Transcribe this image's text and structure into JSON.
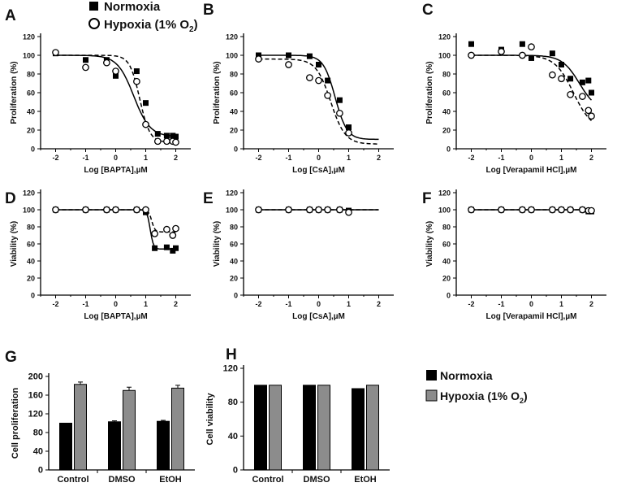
{
  "legend_top": {
    "normoxia": "Normoxia",
    "hypoxia": "Hypoxia (1% O",
    "hypoxia_sub": "2",
    "hypoxia_end": ")"
  },
  "legend_bar": {
    "normoxia": "Normoxia",
    "hypoxia": "Hypoxia (1% O",
    "hypoxia_sub": "2",
    "hypoxia_end": ")"
  },
  "colors": {
    "normoxia": "#000000",
    "hypoxia_bar": "#8c8c8c",
    "hypoxia_marker": "#ffffff"
  },
  "chart_data": [
    {
      "panel": "A",
      "type": "line",
      "xlabel": "Log [BAPTA],µM",
      "ylabel": "Proliferation (%)",
      "xlim": [
        -2.5,
        2.5
      ],
      "ylim": [
        0,
        120
      ],
      "xticks": [
        -2,
        -1,
        0,
        1,
        2
      ],
      "yticks": [
        0,
        20,
        40,
        60,
        80,
        100,
        120
      ],
      "series": [
        {
          "name": "Normoxia",
          "marker": "filled-square",
          "line": "solid",
          "x": [
            -2,
            -1,
            -0.3,
            0,
            0.7,
            1,
            1.4,
            1.7,
            1.9,
            2
          ],
          "y": [
            102,
            95,
            95,
            78,
            83,
            49,
            16,
            14,
            14,
            13
          ],
          "fit": {
            "top": 100,
            "bottom": 13,
            "log_ic50": 0.6,
            "hill": 1.6
          }
        },
        {
          "name": "Hypoxia (1% O2)",
          "marker": "open-circle",
          "line": "dashed",
          "x": [
            -2,
            -1,
            -0.3,
            0,
            0.7,
            1,
            1.4,
            1.7,
            1.9,
            2
          ],
          "y": [
            103,
            87,
            92,
            83,
            72,
            26,
            8,
            8,
            8,
            7
          ],
          "fit": {
            "top": 100,
            "bottom": 7,
            "log_ic50": 0.8,
            "hill": 2.6
          }
        }
      ]
    },
    {
      "panel": "B",
      "type": "line",
      "xlabel": "Log [CsA],µM",
      "ylabel": "Proliferation (%)",
      "xlim": [
        -2.5,
        2.5
      ],
      "ylim": [
        0,
        120
      ],
      "xticks": [
        -2,
        -1,
        0,
        1,
        2
      ],
      "yticks": [
        0,
        20,
        40,
        60,
        80,
        100,
        120
      ],
      "series": [
        {
          "name": "Normoxia",
          "marker": "filled-square",
          "line": "solid",
          "x": [
            -2,
            -1,
            -0.3,
            0,
            0.3,
            0.7,
            1
          ],
          "y": [
            100,
            100,
            99,
            90,
            73,
            52,
            23
          ],
          "fit": {
            "top": 100,
            "bottom": 10,
            "log_ic50": 0.55,
            "hill": 2.2
          }
        },
        {
          "name": "Hypoxia (1% O2)",
          "marker": "open-circle",
          "line": "dashed",
          "x": [
            -2,
            -1,
            -0.3,
            0,
            0.3,
            0.7,
            1
          ],
          "y": [
            96,
            90,
            76,
            73,
            57,
            38,
            17
          ],
          "fit": {
            "top": 96,
            "bottom": 5,
            "log_ic50": 0.4,
            "hill": 1.8
          }
        }
      ]
    },
    {
      "panel": "C",
      "type": "line",
      "xlabel": "Log [Verapamil HCl],µM",
      "ylabel": "Proliferation (%)",
      "xlim": [
        -2.5,
        2.5
      ],
      "ylim": [
        0,
        120
      ],
      "xticks": [
        -2,
        -1,
        0,
        1,
        2
      ],
      "yticks": [
        0,
        20,
        40,
        60,
        80,
        100,
        120
      ],
      "series": [
        {
          "name": "Normoxia",
          "marker": "filled-square",
          "line": "solid",
          "x": [
            -2,
            -1,
            -0.3,
            0,
            0.7,
            1,
            1.3,
            1.7,
            1.9,
            2
          ],
          "y": [
            112,
            106,
            112,
            97,
            102,
            90,
            75,
            71,
            73,
            60
          ],
          "fit": {
            "top": 100,
            "bottom": 40,
            "log_ic50": 1.6,
            "hill": 1.5
          }
        },
        {
          "name": "Hypoxia (1% O2)",
          "marker": "open-circle",
          "line": "dashed",
          "x": [
            -2,
            -1,
            -0.3,
            0,
            0.7,
            1,
            1.3,
            1.7,
            1.9,
            2
          ],
          "y": [
            100,
            104,
            100,
            109,
            79,
            75,
            58,
            56,
            41,
            35
          ],
          "fit": {
            "top": 100,
            "bottom": 20,
            "log_ic50": 1.4,
            "hill": 1.4
          }
        }
      ]
    },
    {
      "panel": "D",
      "type": "line",
      "xlabel": "Log [BAPTA],µM",
      "ylabel": "Viability (%)",
      "xlim": [
        -2.5,
        2.5
      ],
      "ylim": [
        0,
        120
      ],
      "xticks": [
        -2,
        -1,
        0,
        1,
        2
      ],
      "yticks": [
        0,
        20,
        40,
        60,
        80,
        100,
        120
      ],
      "series": [
        {
          "name": "Normoxia",
          "marker": "filled-square",
          "line": "solid",
          "x": [
            -2,
            -1,
            -0.3,
            0,
            0.7,
            1,
            1.3,
            1.7,
            1.9,
            2
          ],
          "y": [
            100,
            100,
            100,
            100,
            100,
            97,
            55,
            56,
            52,
            55
          ],
          "fit": {
            "top": 100,
            "bottom": 54,
            "log_ic50": 1.15,
            "hill": 8
          }
        },
        {
          "name": "Hypoxia (1% O2)",
          "marker": "open-circle",
          "line": "dashed",
          "x": [
            -2,
            -1,
            -0.3,
            0,
            0.7,
            1,
            1.3,
            1.7,
            1.9,
            2
          ],
          "y": [
            100,
            100,
            100,
            100,
            100,
            100,
            72,
            77,
            70,
            78
          ],
          "fit": {
            "top": 100,
            "bottom": 74,
            "log_ic50": 1.2,
            "hill": 8
          }
        }
      ]
    },
    {
      "panel": "E",
      "type": "line",
      "xlabel": "Log [CsA],µM",
      "ylabel": "Viability (%)",
      "xlim": [
        -2.5,
        2.5
      ],
      "ylim": [
        0,
        120
      ],
      "xticks": [
        -2,
        -1,
        0,
        1,
        2
      ],
      "yticks": [
        0,
        20,
        40,
        60,
        80,
        100,
        120
      ],
      "series": [
        {
          "name": "Normoxia",
          "marker": "filled-square",
          "line": "solid",
          "x": [
            -2,
            -1,
            -0.3,
            0,
            0.3,
            0.7,
            1
          ],
          "y": [
            100,
            100,
            100,
            100,
            100,
            100,
            99
          ],
          "fit": {
            "top": 100,
            "bottom": 100,
            "log_ic50": 0,
            "hill": 1
          }
        },
        {
          "name": "Hypoxia (1% O2)",
          "marker": "open-circle",
          "line": "dashed",
          "x": [
            -2,
            -1,
            -0.3,
            0,
            0.3,
            0.7,
            1
          ],
          "y": [
            100,
            100,
            100,
            100,
            100,
            100,
            97
          ],
          "fit": {
            "top": 100,
            "bottom": 100,
            "log_ic50": 0,
            "hill": 1
          }
        }
      ]
    },
    {
      "panel": "F",
      "type": "line",
      "xlabel": "Log [Verapamil HCl],µM",
      "ylabel": "Viability (%)",
      "xlim": [
        -2.5,
        2.5
      ],
      "ylim": [
        0,
        120
      ],
      "xticks": [
        -2,
        -1,
        0,
        1,
        2
      ],
      "yticks": [
        0,
        20,
        40,
        60,
        80,
        100,
        120
      ],
      "series": [
        {
          "name": "Normoxia",
          "marker": "filled-square",
          "line": "solid",
          "x": [
            -2,
            -1,
            -0.3,
            0,
            0.7,
            1,
            1.3,
            1.7,
            1.9,
            2
          ],
          "y": [
            100,
            100,
            100,
            100,
            100,
            100,
            100,
            100,
            98,
            98
          ],
          "fit": {
            "top": 100,
            "bottom": 100,
            "log_ic50": 0,
            "hill": 1
          }
        },
        {
          "name": "Hypoxia (1% O2)",
          "marker": "open-circle",
          "line": "dashed",
          "x": [
            -2,
            -1,
            -0.3,
            0,
            0.7,
            1,
            1.3,
            1.7,
            1.9,
            2
          ],
          "y": [
            100,
            100,
            100,
            100,
            100,
            100,
            100,
            100,
            99,
            99
          ],
          "fit": {
            "top": 100,
            "bottom": 100,
            "log_ic50": 0,
            "hill": 1
          }
        }
      ]
    },
    {
      "panel": "G",
      "type": "bar",
      "ylabel": "Cell proliferation",
      "ylim": [
        0,
        200
      ],
      "yticks": [
        0,
        40,
        80,
        120,
        160,
        200
      ],
      "categories": [
        "Control",
        "DMSO",
        "EtOH"
      ],
      "series": [
        {
          "name": "Normoxia",
          "values": [
            100,
            103,
            104
          ],
          "errors": [
            0,
            2,
            2
          ]
        },
        {
          "name": "Hypoxia (1% O2)",
          "values": [
            183,
            170,
            175
          ],
          "errors": [
            5,
            7,
            6
          ]
        }
      ]
    },
    {
      "panel": "H",
      "type": "bar",
      "ylabel": "Cell viability",
      "ylim": [
        0,
        120
      ],
      "yticks": [
        0,
        40,
        80,
        120
      ],
      "categories": [
        "Control",
        "DMSO",
        "EtOH"
      ],
      "series": [
        {
          "name": "Normoxia",
          "values": [
            100,
            100,
            96
          ],
          "errors": [
            0,
            0,
            0
          ]
        },
        {
          "name": "Hypoxia (1% O2)",
          "values": [
            100,
            100,
            100
          ],
          "errors": [
            0,
            0,
            0
          ]
        }
      ]
    }
  ]
}
